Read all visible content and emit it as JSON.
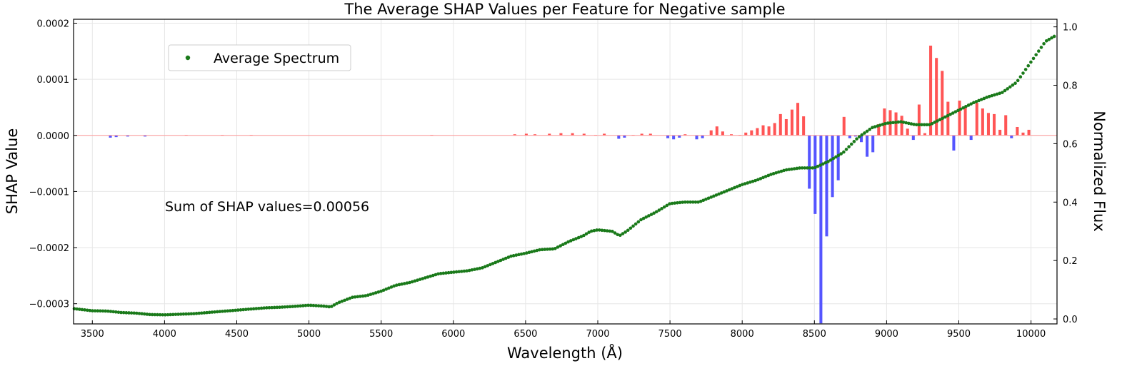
{
  "chart_data": {
    "type": "bar",
    "title": "The Average SHAP Values per Feature for Negative sample",
    "xlabel": "Wavelength (Å)",
    "ylabel": "SHAP Value",
    "y2label": "Normalized Flux",
    "xlim": [
      3370,
      10180
    ],
    "ylim": [
      -0.000336,
      0.000207
    ],
    "y2lim": [
      -0.017,
      1.026
    ],
    "x_ticks": [
      3500,
      4000,
      4500,
      5000,
      5500,
      6000,
      6500,
      7000,
      7500,
      8000,
      8500,
      9000,
      9500,
      10000
    ],
    "y_ticks": [
      -0.0003,
      -0.0002,
      -0.0001,
      0.0,
      0.0001,
      0.0002
    ],
    "y_tick_labels": [
      "−0.0003",
      "−0.0002",
      "−0.0001",
      "0.0000",
      "0.0001",
      "0.0002"
    ],
    "y2_ticks": [
      0.0,
      0.2,
      0.4,
      0.6,
      0.8,
      1.0
    ],
    "y2_tick_labels": [
      "0.0",
      "0.2",
      "0.4",
      "0.6",
      "0.8",
      "1.0"
    ],
    "grid": true,
    "annotation": "Sum of SHAP values=0.00056",
    "legend": {
      "location": "upper-left",
      "entries": [
        "Average Spectrum"
      ]
    },
    "colors": {
      "positive": "#ff5555",
      "negative": "#5555ff",
      "spectrum": "#1a7a1a"
    },
    "bar_width": 20,
    "shap_bars": [
      [
        3625,
        -4e-06
      ],
      [
        3665,
        -3e-06
      ],
      [
        3745,
        -2e-06
      ],
      [
        3865,
        -2e-06
      ],
      [
        4150,
        1e-06
      ],
      [
        4400,
        1e-06
      ],
      [
        4600,
        1e-06
      ],
      [
        5850,
        1e-06
      ],
      [
        6425,
        2e-06
      ],
      [
        6505,
        3e-06
      ],
      [
        6565,
        2e-06
      ],
      [
        6665,
        3e-06
      ],
      [
        6745,
        4e-06
      ],
      [
        6825,
        4e-06
      ],
      [
        6905,
        3e-06
      ],
      [
        6985,
        1e-06
      ],
      [
        7045,
        3e-06
      ],
      [
        7145,
        -6e-06
      ],
      [
        7185,
        -4e-06
      ],
      [
        7245,
        1e-06
      ],
      [
        7305,
        3e-06
      ],
      [
        7365,
        3e-06
      ],
      [
        7485,
        -5e-06
      ],
      [
        7525,
        -7e-06
      ],
      [
        7565,
        -4e-06
      ],
      [
        7605,
        2e-06
      ],
      [
        7685,
        -7e-06
      ],
      [
        7725,
        -5e-06
      ],
      [
        7785,
        9e-06
      ],
      [
        7825,
        1.6e-05
      ],
      [
        7865,
        7e-06
      ],
      [
        7925,
        2e-06
      ],
      [
        7985,
        1e-06
      ],
      [
        8025,
        5e-06
      ],
      [
        8065,
        9e-06
      ],
      [
        8105,
        1.3e-05
      ],
      [
        8145,
        1.8e-05
      ],
      [
        8185,
        1.6e-05
      ],
      [
        8225,
        2.2e-05
      ],
      [
        8265,
        3.8e-05
      ],
      [
        8305,
        2.9e-05
      ],
      [
        8345,
        4.6e-05
      ],
      [
        8385,
        5.8e-05
      ],
      [
        8425,
        3.4e-05
      ],
      [
        8465,
        -9.5e-05
      ],
      [
        8505,
        -0.00014
      ],
      [
        8545,
        -0.000335
      ],
      [
        8585,
        -0.00018
      ],
      [
        8625,
        -0.00011
      ],
      [
        8665,
        -8e-05
      ],
      [
        8705,
        3.3e-05
      ],
      [
        8745,
        -5e-06
      ],
      [
        8785,
        -2e-06
      ],
      [
        8825,
        -1.2e-05
      ],
      [
        8865,
        -3.8e-05
      ],
      [
        8905,
        -3e-05
      ],
      [
        8945,
        2e-05
      ],
      [
        8985,
        4.8e-05
      ],
      [
        9025,
        4.5e-05
      ],
      [
        9065,
        4.1e-05
      ],
      [
        9105,
        3.5e-05
      ],
      [
        9145,
        1.2e-05
      ],
      [
        9185,
        -8e-06
      ],
      [
        9225,
        5.5e-05
      ],
      [
        9265,
        4e-06
      ],
      [
        9305,
        0.00016
      ],
      [
        9345,
        0.000138
      ],
      [
        9385,
        0.000115
      ],
      [
        9425,
        6e-05
      ],
      [
        9465,
        -2.7e-05
      ],
      [
        9505,
        6.2e-05
      ],
      [
        9545,
        5e-05
      ],
      [
        9585,
        -8e-06
      ],
      [
        9625,
        5.8e-05
      ],
      [
        9665,
        4.8e-05
      ],
      [
        9705,
        4e-05
      ],
      [
        9745,
        3.8e-05
      ],
      [
        9785,
        1e-05
      ],
      [
        9825,
        3.6e-05
      ],
      [
        9865,
        -5e-06
      ],
      [
        9905,
        1.5e-05
      ],
      [
        9945,
        5e-06
      ],
      [
        9985,
        1e-05
      ]
    ],
    "spectrum_keypoints": [
      [
        3375,
        0.035
      ],
      [
        3500,
        0.028
      ],
      [
        3600,
        0.027
      ],
      [
        3700,
        0.022
      ],
      [
        3800,
        0.02
      ],
      [
        3900,
        0.015
      ],
      [
        4000,
        0.014
      ],
      [
        4100,
        0.016
      ],
      [
        4200,
        0.018
      ],
      [
        4300,
        0.022
      ],
      [
        4400,
        0.026
      ],
      [
        4500,
        0.03
      ],
      [
        4600,
        0.034
      ],
      [
        4700,
        0.038
      ],
      [
        4800,
        0.04
      ],
      [
        4900,
        0.043
      ],
      [
        5000,
        0.047
      ],
      [
        5100,
        0.044
      ],
      [
        5150,
        0.041
      ],
      [
        5200,
        0.055
      ],
      [
        5300,
        0.074
      ],
      [
        5400,
        0.08
      ],
      [
        5500,
        0.095
      ],
      [
        5600,
        0.115
      ],
      [
        5700,
        0.125
      ],
      [
        5800,
        0.14
      ],
      [
        5900,
        0.155
      ],
      [
        6000,
        0.16
      ],
      [
        6100,
        0.165
      ],
      [
        6200,
        0.175
      ],
      [
        6300,
        0.195
      ],
      [
        6400,
        0.215
      ],
      [
        6450,
        0.22
      ],
      [
        6500,
        0.225
      ],
      [
        6600,
        0.237
      ],
      [
        6700,
        0.24
      ],
      [
        6800,
        0.265
      ],
      [
        6900,
        0.285
      ],
      [
        6950,
        0.3
      ],
      [
        7000,
        0.305
      ],
      [
        7100,
        0.3
      ],
      [
        7150,
        0.285
      ],
      [
        7200,
        0.3
      ],
      [
        7300,
        0.34
      ],
      [
        7400,
        0.365
      ],
      [
        7500,
        0.395
      ],
      [
        7600,
        0.4
      ],
      [
        7700,
        0.4
      ],
      [
        7800,
        0.42
      ],
      [
        7900,
        0.44
      ],
      [
        8000,
        0.46
      ],
      [
        8100,
        0.475
      ],
      [
        8200,
        0.495
      ],
      [
        8300,
        0.51
      ],
      [
        8400,
        0.517
      ],
      [
        8450,
        0.517
      ],
      [
        8500,
        0.517
      ],
      [
        8600,
        0.54
      ],
      [
        8700,
        0.57
      ],
      [
        8800,
        0.62
      ],
      [
        8900,
        0.655
      ],
      [
        9000,
        0.67
      ],
      [
        9100,
        0.675
      ],
      [
        9200,
        0.665
      ],
      [
        9300,
        0.665
      ],
      [
        9400,
        0.69
      ],
      [
        9500,
        0.715
      ],
      [
        9600,
        0.74
      ],
      [
        9700,
        0.76
      ],
      [
        9800,
        0.775
      ],
      [
        9900,
        0.81
      ],
      [
        10000,
        0.88
      ],
      [
        10100,
        0.95
      ],
      [
        10170,
        0.97
      ]
    ]
  }
}
